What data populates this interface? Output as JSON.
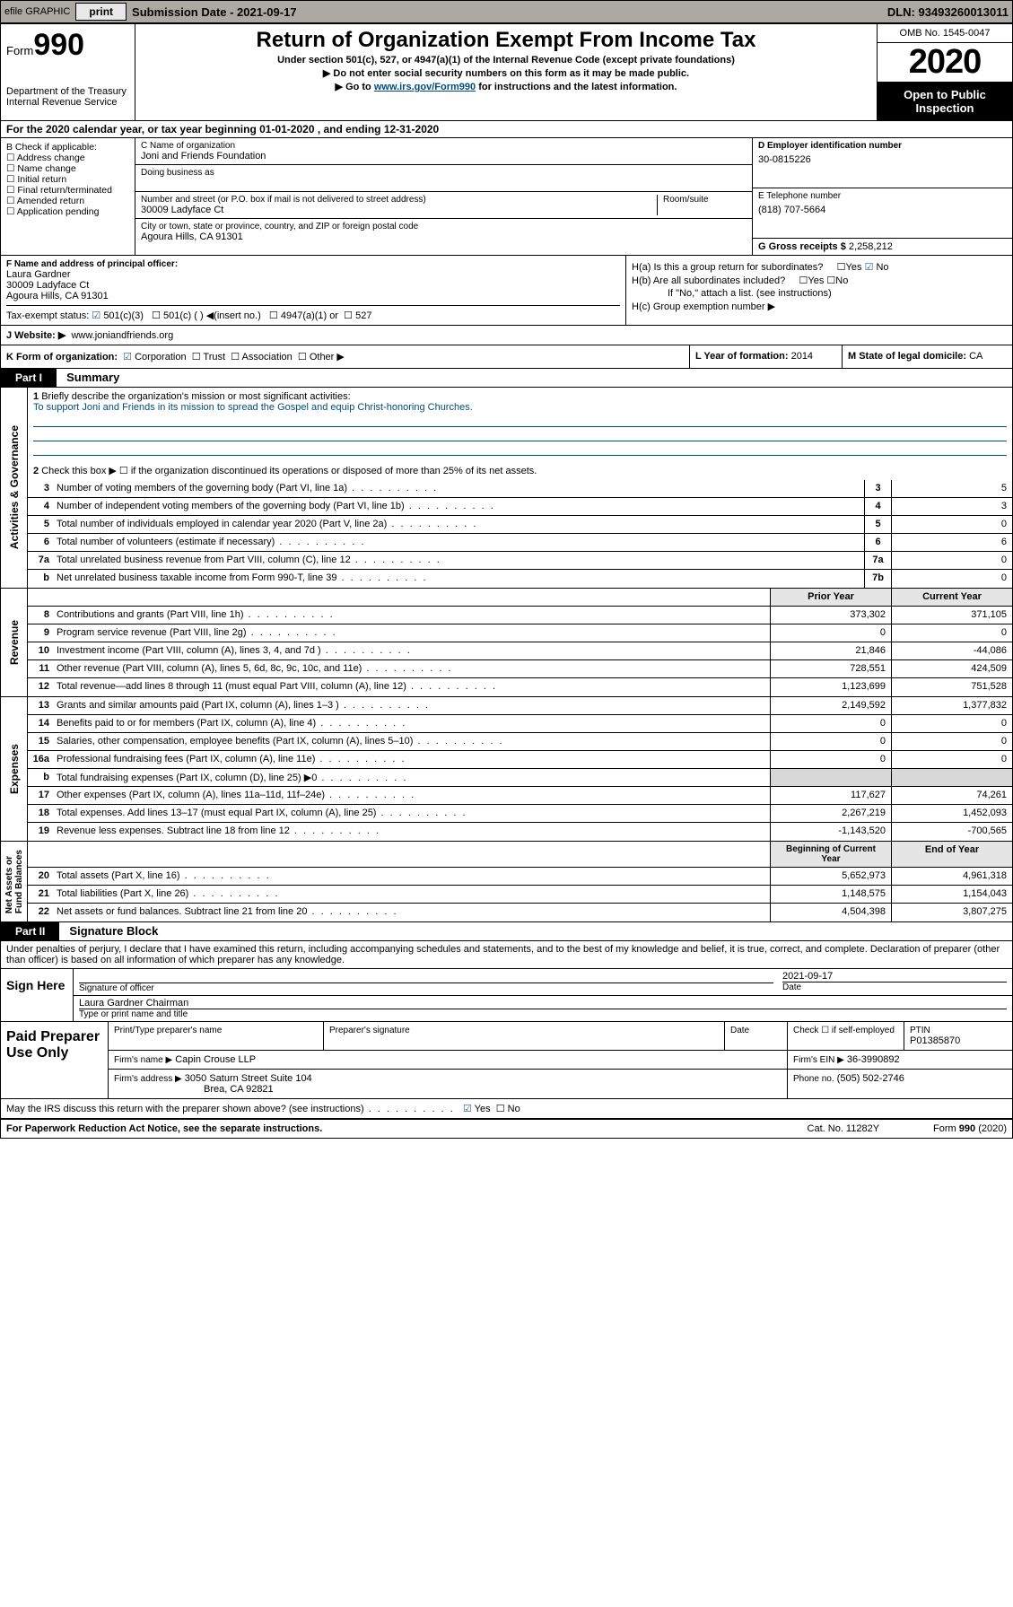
{
  "topbar": {
    "efile": "efile GRAPHIC",
    "print": "print",
    "submission_label": "Submission Date - 2021-09-17",
    "dln": "DLN: 93493260013011"
  },
  "header": {
    "form_label": "Form",
    "form_no": "990",
    "dept": "Department of the Treasury\nInternal Revenue Service",
    "title": "Return of Organization Exempt From Income Tax",
    "sub1": "Under section 501(c), 527, or 4947(a)(1) of the Internal Revenue Code (except private foundations)",
    "sub2": "▶ Do not enter social security numbers on this form as it may be made public.",
    "sub3_pre": "▶ Go to ",
    "sub3_link": "www.irs.gov/Form990",
    "sub3_post": " for instructions and the latest information.",
    "omb": "OMB No. 1545-0047",
    "year": "2020",
    "otpi": "Open to Public Inspection"
  },
  "period": "For the 2020 calendar year, or tax year beginning 01-01-2020    , and ending 12-31-2020",
  "boxB": {
    "label": "B Check if applicable:",
    "opts": [
      "Address change",
      "Name change",
      "Initial return",
      "Final return/terminated",
      "Amended return",
      "Application pending"
    ]
  },
  "boxC": {
    "name_lbl": "C Name of organization",
    "name": "Joni and Friends Foundation",
    "dba_lbl": "Doing business as",
    "addr_lbl": "Number and street (or P.O. box if mail is not delivered to street address)",
    "room_lbl": "Room/suite",
    "addr": "30009 Ladyface Ct",
    "city_lbl": "City or town, state or province, country, and ZIP or foreign postal code",
    "city": "Agoura Hills, CA  91301"
  },
  "boxD": {
    "lbl": "D Employer identification number",
    "val": "30-0815226"
  },
  "boxE": {
    "lbl": "E Telephone number",
    "val": "(818) 707-5664"
  },
  "boxG": {
    "lbl": "G Gross receipts $",
    "val": "2,258,212"
  },
  "boxF": {
    "lbl": "F  Name and address of principal officer:",
    "name": "Laura Gardner",
    "addr1": "30009 Ladyface Ct",
    "addr2": "Agoura Hills, CA  91301"
  },
  "boxH": {
    "a": "H(a)  Is this a group return for subordinates?",
    "b": "H(b)  Are all subordinates included?",
    "note": "If \"No,\" attach a list. (see instructions)",
    "c": "H(c)  Group exemption number ▶"
  },
  "boxI": {
    "lbl": "Tax-exempt status:",
    "o1": "501(c)(3)",
    "o2": "501(c) (   ) ◀(insert no.)",
    "o3": "4947(a)(1) or",
    "o4": "527"
  },
  "boxJ": {
    "lbl": "J   Website: ▶",
    "val": "www.joniandfriends.org"
  },
  "boxK": {
    "lbl": "K Form of organization:",
    "o1": "Corporation",
    "o2": "Trust",
    "o3": "Association",
    "o4": "Other ▶"
  },
  "boxL": {
    "lbl": "L Year of formation:",
    "val": "2014"
  },
  "boxM": {
    "lbl": "M State of legal domicile:",
    "val": "CA"
  },
  "part1": {
    "hdr": "Part I",
    "title": "Summary"
  },
  "summary": {
    "l1_lbl": "Briefly describe the organization's mission or most significant activities:",
    "l1_val": "To support Joni and Friends in its mission to spread the Gospel and equip Christ-honoring Churches.",
    "l2": "Check this box ▶ ☐  if the organization discontinued its operations or disposed of more than 25% of its net assets.",
    "rows_ag": [
      {
        "n": "3",
        "t": "Number of voting members of the governing body (Part VI, line 1a)",
        "c": "3",
        "v": "5"
      },
      {
        "n": "4",
        "t": "Number of independent voting members of the governing body (Part VI, line 1b)",
        "c": "4",
        "v": "3"
      },
      {
        "n": "5",
        "t": "Total number of individuals employed in calendar year 2020 (Part V, line 2a)",
        "c": "5",
        "v": "0"
      },
      {
        "n": "6",
        "t": "Total number of volunteers (estimate if necessary)",
        "c": "6",
        "v": "6"
      },
      {
        "n": "7a",
        "t": "Total unrelated business revenue from Part VIII, column (C), line 12",
        "c": "7a",
        "v": "0"
      },
      {
        "n": "b",
        "t": "Net unrelated business taxable income from Form 990-T, line 39",
        "c": "7b",
        "v": "0"
      }
    ],
    "col_hdr": {
      "py": "Prior Year",
      "cy": "Current Year"
    },
    "rows_rev": [
      {
        "n": "8",
        "t": "Contributions and grants (Part VIII, line 1h)",
        "py": "373,302",
        "cy": "371,105"
      },
      {
        "n": "9",
        "t": "Program service revenue (Part VIII, line 2g)",
        "py": "0",
        "cy": "0"
      },
      {
        "n": "10",
        "t": "Investment income (Part VIII, column (A), lines 3, 4, and 7d )",
        "py": "21,846",
        "cy": "-44,086"
      },
      {
        "n": "11",
        "t": "Other revenue (Part VIII, column (A), lines 5, 6d, 8c, 9c, 10c, and 11e)",
        "py": "728,551",
        "cy": "424,509"
      },
      {
        "n": "12",
        "t": "Total revenue—add lines 8 through 11 (must equal Part VIII, column (A), line 12)",
        "py": "1,123,699",
        "cy": "751,528"
      }
    ],
    "rows_exp": [
      {
        "n": "13",
        "t": "Grants and similar amounts paid (Part IX, column (A), lines 1–3 )",
        "py": "2,149,592",
        "cy": "1,377,832"
      },
      {
        "n": "14",
        "t": "Benefits paid to or for members (Part IX, column (A), line 4)",
        "py": "0",
        "cy": "0"
      },
      {
        "n": "15",
        "t": "Salaries, other compensation, employee benefits (Part IX, column (A), lines 5–10)",
        "py": "0",
        "cy": "0"
      },
      {
        "n": "16a",
        "t": "Professional fundraising fees (Part IX, column (A), line 11e)",
        "py": "0",
        "cy": "0"
      },
      {
        "n": "b",
        "t": "Total fundraising expenses (Part IX, column (D), line 25) ▶0",
        "py": "",
        "cy": "",
        "shade": true
      },
      {
        "n": "17",
        "t": "Other expenses (Part IX, column (A), lines 11a–11d, 11f–24e)",
        "py": "117,627",
        "cy": "74,261"
      },
      {
        "n": "18",
        "t": "Total expenses. Add lines 13–17 (must equal Part IX, column (A), line 25)",
        "py": "2,267,219",
        "cy": "1,452,093"
      },
      {
        "n": "19",
        "t": "Revenue less expenses. Subtract line 18 from line 12",
        "py": "-1,143,520",
        "cy": "-700,565"
      }
    ],
    "col_hdr2": {
      "py": "Beginning of Current Year",
      "cy": "End of Year"
    },
    "rows_na": [
      {
        "n": "20",
        "t": "Total assets (Part X, line 16)",
        "py": "5,652,973",
        "cy": "4,961,318"
      },
      {
        "n": "21",
        "t": "Total liabilities (Part X, line 26)",
        "py": "1,148,575",
        "cy": "1,154,043"
      },
      {
        "n": "22",
        "t": "Net assets or fund balances. Subtract line 21 from line 20",
        "py": "4,504,398",
        "cy": "3,807,275"
      }
    ],
    "side_labels": {
      "ag": "Activities & Governance",
      "rev": "Revenue",
      "exp": "Expenses",
      "na": "Net Assets or\nFund Balances"
    }
  },
  "part2": {
    "hdr": "Part II",
    "title": "Signature Block"
  },
  "perjury": "Under penalties of perjury, I declare that I have examined this return, including accompanying schedules and statements, and to the best of my knowledge and belief, it is true, correct, and complete. Declaration of preparer (other than officer) is based on all information of which preparer has any knowledge.",
  "sign": {
    "here": "Sign Here",
    "sig_lbl": "Signature of officer",
    "date": "2021-09-17",
    "date_lbl": "Date",
    "name": "Laura Gardner  Chairman",
    "name_lbl": "Type or print name and title"
  },
  "paid": {
    "lbl": "Paid Preparer Use Only",
    "h1": "Print/Type preparer's name",
    "h2": "Preparer's signature",
    "h3": "Date",
    "self": "Check ☐ if self-employed",
    "ptin_lbl": "PTIN",
    "ptin": "P01385870",
    "firm_lbl": "Firm's name    ▶",
    "firm": "Capin Crouse LLP",
    "ein_lbl": "Firm's EIN ▶",
    "ein": "36-3990892",
    "addr_lbl": "Firm's address ▶",
    "addr1": "3050 Saturn Street Suite 104",
    "addr2": "Brea, CA  92821",
    "phone_lbl": "Phone no.",
    "phone": "(505) 502-2746"
  },
  "discuss": "May the IRS discuss this return with the preparer shown above? (see instructions)",
  "yes": "Yes",
  "no": "No",
  "footer": {
    "pra": "For Paperwork Reduction Act Notice, see the separate instructions.",
    "cat": "Cat. No. 11282Y",
    "form": "Form 990 (2020)"
  },
  "colors": {
    "link": "#004b82",
    "topbar": "#aca9a2",
    "shade": "#d8d8d8"
  }
}
